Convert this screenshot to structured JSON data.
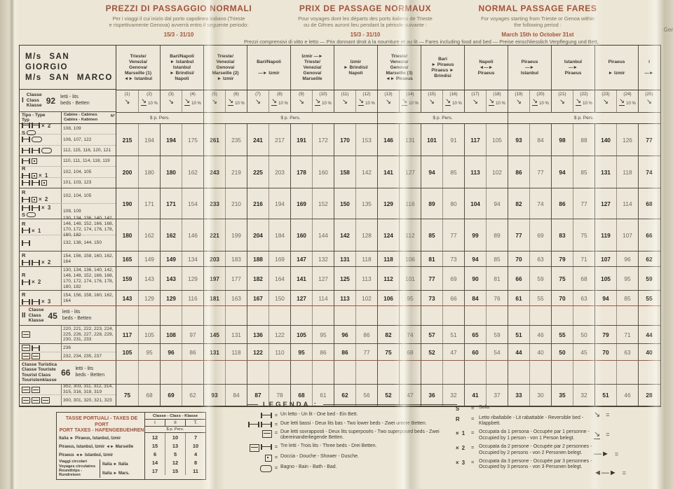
{
  "page": {
    "bg": "#ebe6d5",
    "accent": "#a85137",
    "ink": "#35332b"
  },
  "top_headers": {
    "italian": {
      "title": "PREZZI DI PASSAGGIO NORMALI",
      "line1": "Per i viaggi il cui inizio dal porto capolinea italiano (Trieste",
      "line2": "e rispettivamente Genova) avverrà entro il seguente periodo:",
      "period": "15/3 - 31/10"
    },
    "french": {
      "title": "PRIX DE PASSAGE NORMAUX",
      "line1": "Pour voyages dont les départs des ports italiens de Trieste",
      "line2": "ou de Gênes auront lieu pendant la période suivante :",
      "period": "15/3 - 31/10"
    },
    "english": {
      "title": "NORMAL PASSAGE FARES",
      "line1": "For voyages starting from Trieste or Genoa within",
      "line2": "the following period :",
      "period": "March 15th to October 31st"
    },
    "german_cut": "Ger",
    "meal_note_left": "Prezzi comprensivi di vitto e letto — Prix donnant droit à la nourriture et au lit",
    "meal_note_right": "— Fares including food and bed — Preise einschliesslich Verpflegung und Bett,"
  },
  "fare_table": {
    "ship_names": [
      "M/s SAN GIORGIO",
      "M/s SAN MARCO"
    ],
    "class1": {
      "roman": "I",
      "labels": [
        "Classe",
        "Class",
        "Klasse"
      ],
      "beds_count": "92"
    },
    "class2": {
      "roman": "II",
      "labels": [
        "Classe",
        "Class",
        "Klasse"
      ],
      "beds_count": "45"
    },
    "tourist": {
      "labels": [
        "Classe Turistica",
        "Classe Touriste",
        "Tourist Class",
        "Touristenklasse"
      ],
      "beds_count": "66"
    },
    "beds_lines": [
      "letti - lits",
      "beds - Betten"
    ],
    "tipo_header": [
      "Tipo - Type",
      "Typ"
    ],
    "cabine_header": [
      "Cabine - Cabines",
      "Cabins - Kabinen"
    ],
    "cabine_no": "N°",
    "dollar_pers": "$ p. Pers.",
    "discount": "10 %",
    "dollar_spans": [
      4,
      8,
      6,
      7
    ],
    "col_numbers": [
      "(1)",
      "(2)",
      "(3)",
      "(4)",
      "(5)",
      "(6)",
      "(7)",
      "(8)",
      "(9)",
      "(10)",
      "(11)",
      "(12)",
      "(13)",
      "(14)",
      "(15)",
      "(16)",
      "(17)",
      "(18)",
      "(19)",
      "(20)",
      "(21)",
      "(22)",
      "(23)",
      "(24)",
      "(25)"
    ],
    "route_groups": [
      {
        "span": 2,
        "lines": [
          "Trieste/",
          "Venezia/",
          "Genova/",
          "Marseille (1)",
          "◄► Istanbul"
        ]
      },
      {
        "span": 2,
        "lines": [
          "Bari/Napoli",
          "► Istanbul",
          "Istanbul",
          "► Brindisi/",
          "Napoli"
        ]
      },
      {
        "span": 2,
        "lines": [
          "Trieste/",
          "Venezia/",
          "Genova/",
          "Marseille (2)",
          "► Izmir"
        ]
      },
      {
        "span": 2,
        "lines": [
          "Bari/Napoli",
          "",
          "—► Izmir"
        ]
      },
      {
        "span": 2,
        "lines": [
          "Izmir —►",
          "Trieste/",
          "Venezia/",
          "Genova/",
          "Marseille"
        ]
      },
      {
        "span": 2,
        "lines": [
          "Izmir",
          "► Brindisi/",
          "Napoli"
        ]
      },
      {
        "span": 2,
        "lines": [
          "Trieste/",
          "Venezia/",
          "Genova/",
          "Marseille (3)",
          "◄► Piraeus"
        ]
      },
      {
        "span": 2,
        "lines": [
          "Bari",
          "► Piraeus",
          "Piraeus ►",
          "Brindisi"
        ]
      },
      {
        "span": 2,
        "lines": [
          "Napoli",
          "◄—►",
          "Piraeus"
        ]
      },
      {
        "span": 2,
        "lines": [
          "Piraeus",
          "—►",
          "Istanbul"
        ]
      },
      {
        "span": 2,
        "lines": [
          "Istanbul",
          "—►",
          "Piraeus"
        ]
      },
      {
        "span": 2,
        "lines": [
          "Piraeus",
          "",
          "► Izmir"
        ]
      },
      {
        "span": 1,
        "lines": [
          "I",
          "",
          "—►"
        ]
      }
    ],
    "rows": [
      {
        "type": "group",
        "subs": [
          {
            "icon_lines": [
              [
                "bed",
                "bed",
                "x2"
              ],
              [
                "S",
                "sofa"
              ]
            ],
            "cabins": "108, 109"
          },
          {
            "icon_lines": [
              [
                "bed",
                "bath"
              ]
            ],
            "cabins": "106, 107, 122"
          },
          {
            "icon_lines": [
              [
                "bed",
                "bed",
                "bath"
              ]
            ],
            "cabins": "112, 115, 116, 120, 121"
          }
        ],
        "prices": [
          "215",
          "194",
          "194",
          "175",
          "261",
          "235",
          "241",
          "217",
          "191",
          "172",
          "170",
          "153",
          "146",
          "131",
          "101",
          "91",
          "117",
          "105",
          "93",
          "84",
          "98",
          "88",
          "140",
          "126",
          "77"
        ]
      },
      {
        "type": "group",
        "subs": [
          {
            "icon_lines": [
              [
                "bed",
                "shower"
              ]
            ],
            "cabins": "110, 111, 114, 118, 119"
          },
          {
            "icon_lines": [
              [
                "R"
              ],
              [
                "bed",
                "shower",
                "x1"
              ]
            ],
            "cabins": "102, 104, 105"
          },
          {
            "icon_lines": [
              [
                "bed",
                "bed",
                "shower"
              ]
            ],
            "cabins": "101, 103, 123"
          }
        ],
        "prices": [
          "200",
          "180",
          "180",
          "162",
          "243",
          "219",
          "225",
          "203",
          "178",
          "160",
          "158",
          "142",
          "141",
          "127",
          "94",
          "85",
          "113",
          "102",
          "86",
          "77",
          "94",
          "85",
          "131",
          "118",
          "74"
        ]
      },
      {
        "type": "group",
        "subs": [
          {
            "icon_lines": [
              [
                "R"
              ],
              [
                "bed",
                "shower",
                "x2"
              ]
            ],
            "cabins": "102, 104, 105"
          },
          {
            "icon_lines": [
              [
                "bed",
                "bed",
                "x3"
              ],
              [
                "S",
                "sofa"
              ]
            ],
            "cabins": "108, 109"
          }
        ],
        "prices": [
          "190",
          "171",
          "171",
          "154",
          "233",
          "210",
          "216",
          "194",
          "169",
          "152",
          "150",
          "135",
          "129",
          "116",
          "89",
          "80",
          "104",
          "94",
          "82",
          "74",
          "86",
          "77",
          "127",
          "114",
          "68"
        ]
      },
      {
        "type": "group",
        "subs": [
          {
            "icon_lines": [
              [
                "R"
              ],
              [
                "bed",
                "x1"
              ]
            ],
            "cabins": "130, 134, 136, 140, 142, 146, 148, 152, 166, 168, 170, 172, 174, 176, 178, 180, 182"
          },
          {
            "icon_lines": [
              [
                "bed"
              ]
            ],
            "cabins": "132, 138, 144, 150"
          }
        ],
        "prices": [
          "180",
          "162",
          "162",
          "146",
          "221",
          "199",
          "204",
          "184",
          "160",
          "144",
          "142",
          "128",
          "124",
          "112",
          "85",
          "77",
          "99",
          "89",
          "77",
          "69",
          "83",
          "75",
          "119",
          "107",
          "66"
        ]
      },
      {
        "type": "group",
        "subs": [
          {
            "icon_lines": [
              [
                "R"
              ],
              [
                "bed",
                "bed",
                "x2"
              ]
            ],
            "cabins": "154, 156, 158, 160, 162, 164"
          }
        ],
        "prices": [
          "165",
          "149",
          "149",
          "134",
          "203",
          "183",
          "188",
          "169",
          "147",
          "132",
          "131",
          "118",
          "118",
          "106",
          "81",
          "73",
          "94",
          "85",
          "70",
          "63",
          "79",
          "71",
          "107",
          "96",
          "62"
        ]
      },
      {
        "type": "group",
        "subs": [
          {
            "icon_lines": [
              [
                "R"
              ],
              [
                "bed",
                "x2"
              ]
            ],
            "cabins": "130, 134, 136, 140, 142, 146, 148, 152, 166, 168, 170, 172, 174, 176, 178, 180, 182"
          }
        ],
        "prices": [
          "159",
          "143",
          "143",
          "129",
          "197",
          "177",
          "182",
          "164",
          "141",
          "127",
          "125",
          "113",
          "112",
          "101",
          "77",
          "69",
          "90",
          "81",
          "66",
          "59",
          "75",
          "68",
          "105",
          "95",
          "59"
        ]
      },
      {
        "type": "group",
        "red": true,
        "subs": [
          {
            "icon_lines": [
              [
                "R"
              ],
              [
                "bed",
                "bed",
                "x3"
              ]
            ],
            "cabins": "154, 156, 158, 160, 162, 164"
          }
        ],
        "prices": [
          "143",
          "129",
          "129",
          "116",
          "181",
          "163",
          "167",
          "150",
          "127",
          "114",
          "113",
          "102",
          "106",
          "95",
          "73",
          "66",
          "84",
          "76",
          "61",
          "55",
          "70",
          "63",
          "94",
          "85",
          "55"
        ]
      },
      {
        "type": "band",
        "band": "class2"
      },
      {
        "type": "group",
        "subs": [
          {
            "icon_lines": [
              [
                "bunk"
              ]
            ],
            "cabins": "220, 221, 222, 223, 224, 225, 226, 227, 228, 229, 230, 231, 233"
          }
        ],
        "prices": [
          "117",
          "105",
          "108",
          "97",
          "145",
          "131",
          "136",
          "122",
          "105",
          "95",
          "96",
          "86",
          "82",
          "74",
          "57",
          "51",
          "65",
          "59",
          "51",
          "46",
          "55",
          "50",
          "79",
          "71",
          "44"
        ]
      },
      {
        "type": "group",
        "red": true,
        "subs": [
          {
            "icon_lines": [
              [
                "bunk",
                "bed"
              ]
            ],
            "cabins": "236"
          },
          {
            "icon_lines": [
              [
                "bunk",
                "bunk"
              ]
            ],
            "cabins": "232, 234, 235, 237"
          }
        ],
        "prices": [
          "105",
          "95",
          "96",
          "86",
          "131",
          "118",
          "122",
          "110",
          "95",
          "86",
          "86",
          "77",
          "75",
          "68",
          "52",
          "47",
          "60",
          "54",
          "44",
          "40",
          "50",
          "45",
          "70",
          "63",
          "40"
        ]
      },
      {
        "type": "band",
        "band": "tourist"
      },
      {
        "type": "group",
        "subs": [
          {
            "icon_lines": [
              [
                "bunk",
                "bunk"
              ]
            ],
            "cabins": "302, 303, 311, 312, 314, 315, 316, 318, 319"
          },
          {
            "icon_lines": [
              [
                "bunk",
                "bunk",
                "bunk"
              ]
            ],
            "cabins": "300, 301, 320, 321, 323"
          }
        ],
        "prices": [
          "75",
          "68",
          "69",
          "62",
          "93",
          "84",
          "87",
          "78",
          "68",
          "61",
          "62",
          "56",
          "52",
          "47",
          "36",
          "32",
          "41",
          "37",
          "33",
          "30",
          "35",
          "32",
          "51",
          "46",
          "28"
        ]
      }
    ]
  },
  "port_taxes": {
    "title_lines": [
      "TASSE PORTUALI - TAXES DE PORT",
      "PORT TAXES - HAFENGEBUEHREN"
    ],
    "class_header": "Classe - Class - Klasse",
    "cols": [
      "I",
      "II",
      "T."
    ],
    "unit": "$ p. Pers.",
    "rows": [
      {
        "label": "Italia ► Piraeus, Istanbul, Izmir",
        "values": [
          "12",
          "10",
          "7"
        ]
      },
      {
        "label": "Piraeus, Istanbul, Izmir ◄► Marseille",
        "values": [
          "15",
          "13",
          "10"
        ]
      },
      {
        "label": "Piraeus ◄► Istanbul, Izmir",
        "values": [
          "6",
          "5",
          "4"
        ]
      }
    ],
    "roundtrip": {
      "labels": [
        "Viaggi circolari",
        "Voyages circulaires",
        "Roundtrips - Rundreisen"
      ],
      "entries": [
        {
          "label": "Italia ► Italia",
          "values": [
            "14",
            "12",
            "8"
          ]
        },
        {
          "label": "Italia ► Mars.",
          "values": [
            "17",
            "15",
            "11"
          ]
        }
      ]
    }
  },
  "legend": {
    "title": "LEGENDA :",
    "eq": "=",
    "items": [
      {
        "icons": [
          "bed"
        ],
        "text": "Un letto - Un lit - One bed - Ein Bett."
      },
      {
        "icons": [
          "bed",
          "bed"
        ],
        "text": "Due letti bassi - Deux lits bas - Two lower beds - Zwei untere Betten."
      },
      {
        "icons": [
          "bunk"
        ],
        "text": "Due letti sovrapposti - Deux lits superposés - Two superposed beds - Zwei übereinanderliegende Betten."
      },
      {
        "icons": [
          "bunk",
          "bed"
        ],
        "text": "Tre letti - Trois lits - Three beds - Drei Betten."
      },
      {
        "icons": [
          "shower"
        ],
        "text": "Doccia - Douche - Shower - Dusche."
      },
      {
        "icons": [
          "bath"
        ],
        "text": "Bagno - Bain - Bath - Bad."
      }
    ]
  },
  "legend_right": {
    "eq": "=",
    "items": [
      {
        "symbol": "S",
        "text": "Sofa."
      },
      {
        "symbol": "R",
        "text": "Letto ribaltabile - Lit rabattable - Reversible bed - Klappbett."
      },
      {
        "symbol": "× 1",
        "text": "Occupata da 1 persona - Occupée par 1 personne - Occupied by 1 person - von 1 Person belegt."
      },
      {
        "symbol": "× 2",
        "text": "Occupata da 2 persone - Occupée par 2 personnes - Occupied by 2 persons - von 2 Personen belegt."
      },
      {
        "symbol": "× 3",
        "text": "Occupata da 3 persone - Occupée par 3 personnes - Occupied by 3 persons - von 3 Personen belegt."
      }
    ]
  },
  "edge_symbols": {
    "eq": "=",
    "items": [
      {
        "glyph": "↘",
        "underline": false,
        "name": "diagonal-arrow-icon"
      },
      {
        "glyph": "↘",
        "underline": true,
        "name": "diagonal-arrow-discount-icon"
      },
      {
        "glyph": "—►",
        "underline": false,
        "name": "one-way-arrow-icon"
      },
      {
        "glyph": "◄—►",
        "underline": false,
        "name": "round-trip-arrow-icon"
      }
    ]
  }
}
